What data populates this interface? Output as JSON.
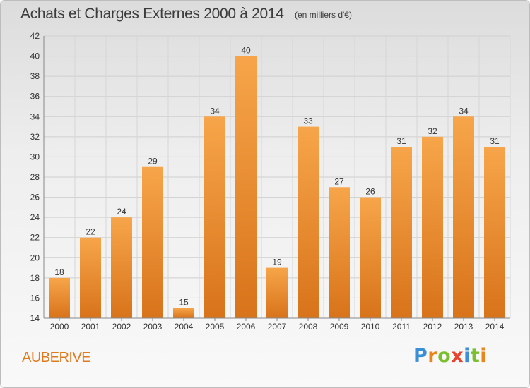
{
  "header": {
    "title": "Achats et Charges Externes 2000 à 2014",
    "subtitle": "(en milliers d'€)"
  },
  "footer": {
    "commune": "AUBERIVE",
    "logo_text": "Proxiti"
  },
  "colors": {
    "bar_light": "#f7a54a",
    "bar_dark": "#d8731a",
    "accent": "#e07a1f"
  },
  "chart_data": {
    "type": "bar",
    "title": "Achats et Charges Externes 2000 à 2014",
    "subtitle": "(en milliers d'€)",
    "categories": [
      "2000",
      "2001",
      "2002",
      "2003",
      "2004",
      "2005",
      "2006",
      "2007",
      "2008",
      "2009",
      "2010",
      "2011",
      "2012",
      "2013",
      "2014"
    ],
    "values": [
      18,
      22,
      24,
      29,
      15,
      34,
      40,
      19,
      33,
      27,
      26,
      31,
      32,
      34,
      31
    ],
    "ylim": [
      14,
      42
    ],
    "yticks": [
      14,
      16,
      18,
      20,
      22,
      24,
      26,
      28,
      30,
      32,
      34,
      36,
      38,
      40,
      42
    ],
    "grid": true,
    "data_labels": true
  }
}
